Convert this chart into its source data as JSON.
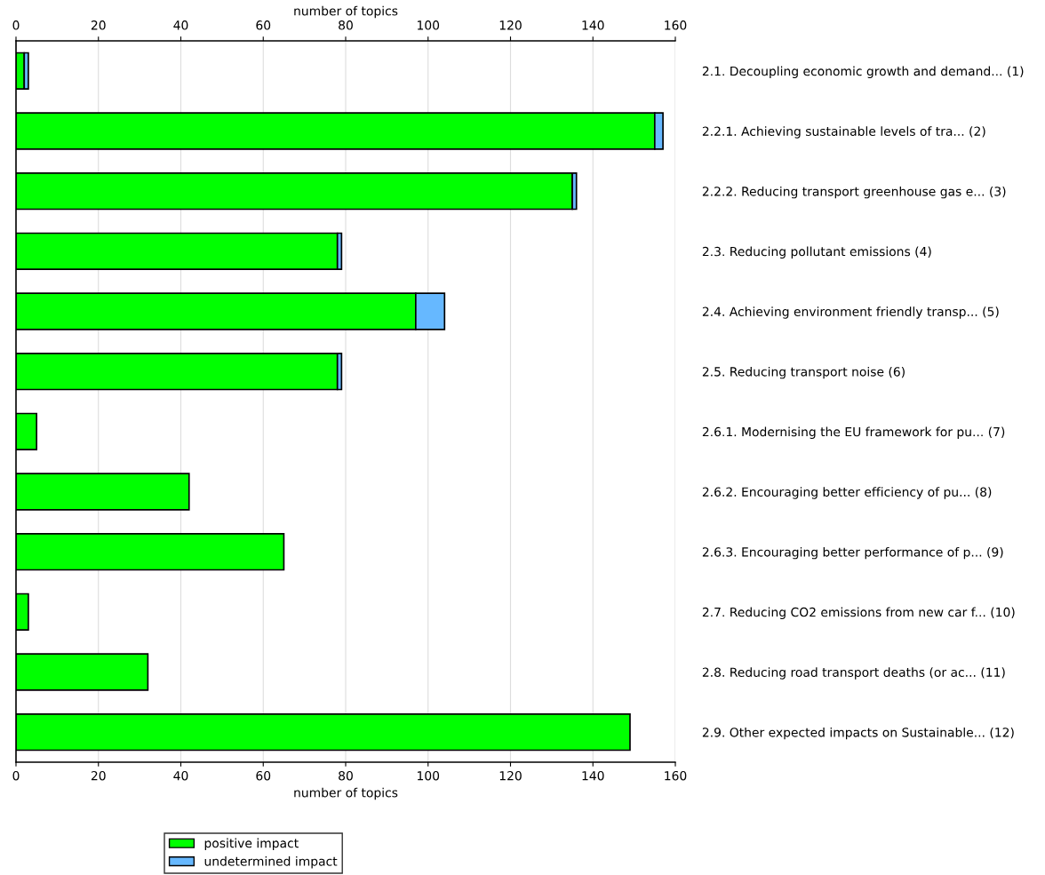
{
  "chart_data": {
    "type": "bar",
    "orientation": "horizontal",
    "stacked": true,
    "categories": [
      "2.1. Decoupling economic growth and demand... (1)",
      "2.2.1. Achieving sustainable levels of tra... (2)",
      "2.2.2. Reducing transport greenhouse gas e... (3)",
      "2.3. Reducing pollutant emissions (4)",
      "2.4. Achieving environment friendly transp... (5)",
      "2.5. Reducing transport noise (6)",
      "2.6.1. Modernising the EU framework for pu... (7)",
      "2.6.2. Encouraging better efficiency of pu... (8)",
      "2.6.3. Encouraging better performance of p... (9)",
      "2.7. Reducing CO2 emissions from new car f... (10)",
      "2.8. Reducing road transport deaths (or ac... (11)",
      "2.9. Other expected impacts on Sustainable... (12)"
    ],
    "series": [
      {
        "name": "positive impact",
        "color": "#00ff00",
        "values": [
          2,
          155,
          135,
          78,
          97,
          78,
          5,
          42,
          65,
          3,
          32,
          149
        ]
      },
      {
        "name": "undetermined impact",
        "color": "#66b8ff",
        "values": [
          1,
          2,
          1,
          1,
          7,
          1,
          0,
          0,
          0,
          0,
          0,
          0
        ]
      }
    ],
    "xlabel": "number of topics",
    "x2label": "number of topics",
    "xlim": [
      0,
      160
    ],
    "xticks": [
      0,
      20,
      40,
      60,
      80,
      100,
      120,
      140,
      160
    ],
    "x2lim": [
      0,
      160
    ],
    "x2ticks": [
      0,
      20,
      40,
      60,
      80,
      100,
      120,
      140,
      160
    ],
    "grid": "x",
    "legend": "bottom"
  }
}
